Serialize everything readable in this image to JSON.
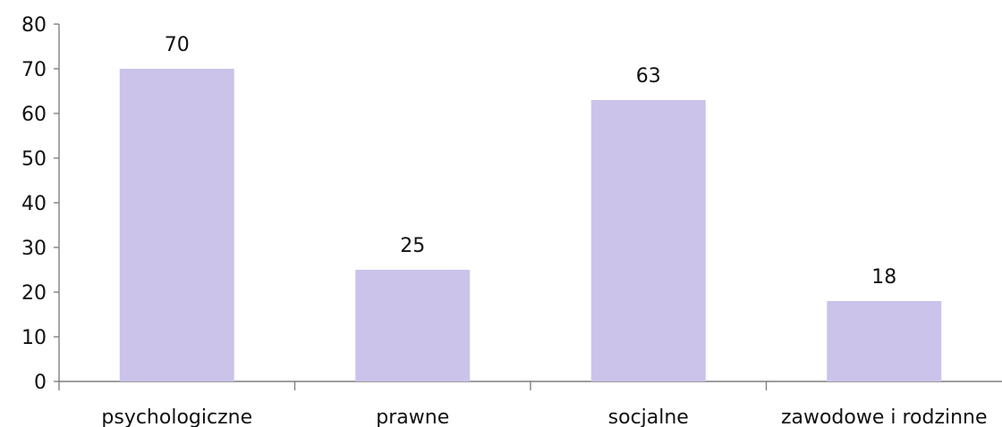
{
  "chart_data": {
    "type": "bar",
    "categories": [
      "psychologiczne",
      "prawne",
      "socjalne",
      "zawodowe i rodzinne"
    ],
    "values": [
      70,
      25,
      63,
      18
    ],
    "data_labels": [
      "70",
      "25",
      "63",
      "18"
    ],
    "ylim": [
      0,
      80
    ],
    "yticks": [
      0,
      10,
      20,
      30,
      40,
      50,
      60,
      70,
      80
    ],
    "grid": false,
    "legend": "none",
    "colors": {
      "bar": "#cbc3ea",
      "axis": "#7f7f7f",
      "text": "#111111"
    }
  }
}
